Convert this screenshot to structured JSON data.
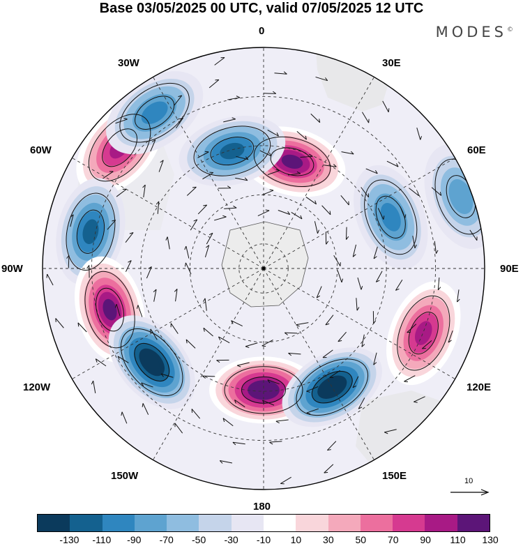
{
  "title": "Base 03/05/2025 00 UTC, valid 07/05/2025 12 UTC",
  "brand": "MODES",
  "brand_mark": "©",
  "longitude_labels": {
    "l0": "0",
    "l30e": "30E",
    "l60e": "60E",
    "l90e": "90E",
    "l120e": "120E",
    "l150e": "150E",
    "l180": "180",
    "l150w": "150W",
    "l120w": "120W",
    "l90w": "90W",
    "l60w": "60W",
    "l30w": "30W"
  },
  "reference_vector": {
    "label": "10"
  },
  "colorbar": {
    "labels": [
      "-130",
      "-110",
      "-90",
      "-70",
      "-50",
      "-30",
      "-10",
      "10",
      "30",
      "50",
      "70",
      "90",
      "110",
      "130"
    ],
    "colors": [
      "#0b3a5c",
      "#14618f",
      "#2f86bf",
      "#5ea3d0",
      "#8fbde0",
      "#c5d4ea",
      "#e7e6f3",
      "#ffffff",
      "#f9d6db",
      "#f4a9bb",
      "#ec6f9e",
      "#d63a90",
      "#a81a85",
      "#5c1578"
    ]
  },
  "map_data": {
    "projection": "south-polar-stereographic",
    "anomalies": [
      {
        "lon": 180,
        "r": 0.55,
        "value": 130
      },
      {
        "lon": 150,
        "r": 0.62,
        "value": -130
      },
      {
        "lon": 112,
        "r": 0.78,
        "value": 90
      },
      {
        "lon": 68,
        "r": 0.62,
        "value": -70
      },
      {
        "lon": 70,
        "r": 0.95,
        "value": -50
      },
      {
        "lon": 15,
        "r": 0.5,
        "value": 110
      },
      {
        "lon": -15,
        "r": 0.55,
        "value": -90
      },
      {
        "lon": -50,
        "r": 0.85,
        "value": 90
      },
      {
        "lon": -78,
        "r": 0.8,
        "value": -90
      },
      {
        "lon": -105,
        "r": 0.72,
        "value": 110
      },
      {
        "lon": -130,
        "r": 0.66,
        "value": -130
      },
      {
        "lon": -35,
        "r": 0.86,
        "value": -70
      }
    ],
    "graticule_latitudes": [
      -80,
      -60,
      -40,
      -20
    ],
    "graticule_longitudes_step": 30
  },
  "colors": {
    "land": "#e6e6e6",
    "antarctica": "#ececec",
    "coast": "#555555",
    "arrow": "#111111"
  }
}
